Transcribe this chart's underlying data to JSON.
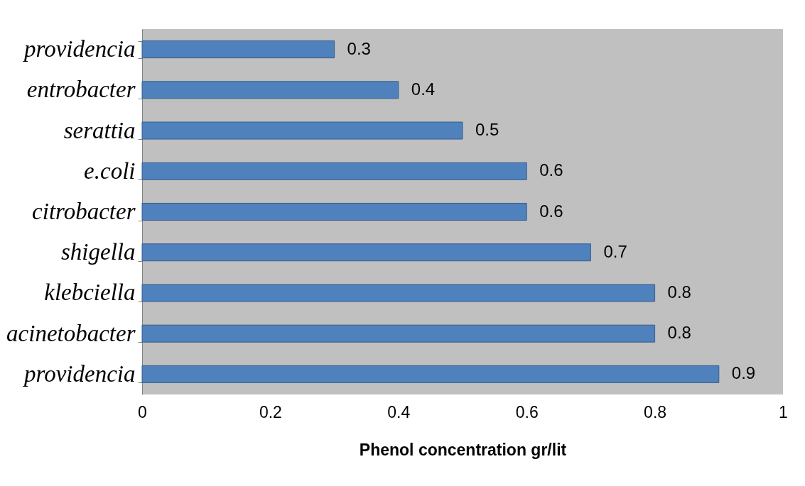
{
  "chart_data": {
    "type": "bar",
    "orientation": "horizontal",
    "xlabel": "Phenol concentration gr/lit",
    "categories": [
      "providencia",
      "entrobacter",
      "serattia",
      "e.coli",
      "citrobacter",
      "shigella",
      "klebciella",
      "acinetobacter",
      "providencia"
    ],
    "values": [
      0.3,
      0.4,
      0.5,
      0.6,
      0.6,
      0.7,
      0.8,
      0.8,
      0.9
    ],
    "color": "#4f81bd",
    "xlim": [
      0,
      1
    ],
    "xticks": [
      0,
      0.2,
      0.4,
      0.6,
      0.8,
      1
    ],
    "grid": false,
    "data_labels": true
  }
}
